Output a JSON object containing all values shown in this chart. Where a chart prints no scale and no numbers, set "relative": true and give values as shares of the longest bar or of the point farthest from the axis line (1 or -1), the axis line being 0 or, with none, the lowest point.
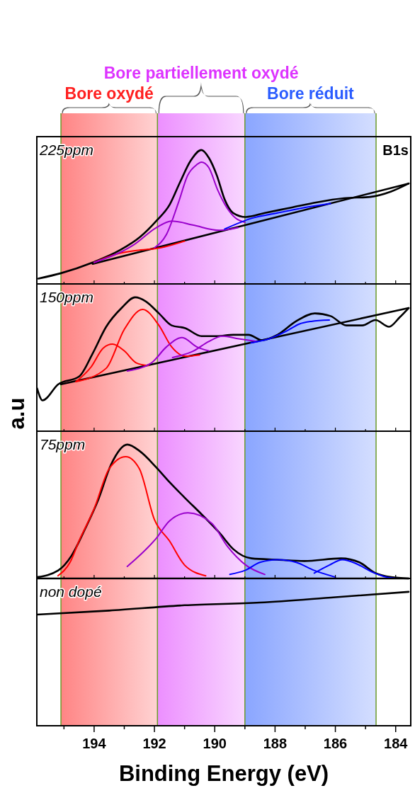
{
  "chart_data": [
    {
      "type": "line",
      "relative": true,
      "xlim": [
        195.9,
        183.5
      ],
      "tick_labels": false,
      "annotations": [
        "225ppm",
        "B1s"
      ],
      "xticks": [
        {
          "value": 195,
          "label": null
        },
        194,
        {
          "value": 193,
          "label": null
        },
        192,
        {
          "value": 191,
          "label": null
        },
        190,
        {
          "value": 189,
          "label": null
        },
        188,
        {
          "value": 187,
          "label": null
        },
        186,
        {
          "value": 185,
          "label": null
        },
        184
      ],
      "ref_lines": [
        {
          "axis": "x",
          "value": 195.1,
          "color": "#6b9a2a"
        },
        {
          "axis": "x",
          "value": 191.9,
          "color": "#6b9a2a"
        },
        {
          "axis": "x",
          "value": 189.0,
          "color": "#6b9a2a"
        },
        {
          "axis": "x",
          "value": 184.65,
          "color": "#6b9a2a"
        }
      ],
      "bands": [
        {
          "axis": "x",
          "from": 195.1,
          "to": 191.9,
          "label": "Bore oxydé",
          "color": "#ff2020"
        },
        {
          "axis": "x",
          "from": 191.9,
          "to": 189.0,
          "label": "Bore partiellement oxydé",
          "color": "#dd33ff"
        },
        {
          "axis": "x",
          "from": 189.0,
          "to": 184.65,
          "label": "Bore réduit",
          "color": "#2a5cff"
        }
      ],
      "series": [
        {
          "color": "#000000",
          "x": [
            195.85,
            195.1,
            194.05,
            193.16,
            192.48,
            191.94,
            191.5,
            191.15,
            190.8,
            190.44,
            190.19,
            189.93,
            189.67,
            189.39,
            188.97,
            188.34,
            187.47,
            186.61,
            185.72,
            184.85,
            184.15,
            183.57
          ],
          "values": [
            0.04,
            0.08,
            0.16,
            0.25,
            0.35,
            0.47,
            0.59,
            0.76,
            0.92,
            1,
            0.94,
            0.81,
            0.63,
            0.53,
            0.5,
            0.53,
            0.57,
            0.61,
            0.64,
            0.65,
            0.69,
            0.75
          ]
        },
        {
          "color": "#000000",
          "x": [
            194.05,
            183.57
          ],
          "values": [
            0.15,
            0.75
          ]
        },
        {
          "color": "#ff0000",
          "x": [
            194.0,
            193.3,
            192.6,
            191.8,
            191.0
          ],
          "values": [
            0.16,
            0.22,
            0.25,
            0.27,
            0.32
          ]
        },
        {
          "color": "#9900cc",
          "x": [
            194.0,
            192.7,
            191.94,
            191.43,
            190.73,
            189.84,
            189.23
          ],
          "values": [
            0.16,
            0.29,
            0.42,
            0.47,
            0.44,
            0.4,
            0.42
          ]
        },
        {
          "color": "#9900cc",
          "x": [
            192.0,
            191.6,
            191.2,
            190.9,
            190.6,
            190.44,
            190.2,
            189.9,
            189.6,
            189.3,
            189.0
          ],
          "values": [
            0.27,
            0.37,
            0.61,
            0.81,
            0.89,
            0.91,
            0.87,
            0.7,
            0.57,
            0.49,
            0.46
          ]
        },
        {
          "color": "#0000ff",
          "x": [
            189.67,
            188.78,
            187.92,
            187.03,
            186.16
          ],
          "values": [
            0.41,
            0.49,
            0.53,
            0.57,
            0.6
          ]
        }
      ]
    },
    {
      "type": "line",
      "relative": true,
      "xlim": [
        195.9,
        183.5
      ],
      "tick_labels": false,
      "ylabel": "a.u",
      "annotations": [
        "150ppm"
      ],
      "xticks": [
        {
          "value": 195,
          "label": null
        },
        194,
        {
          "value": 193,
          "label": null
        },
        192,
        {
          "value": 191,
          "label": null
        },
        190,
        {
          "value": 189,
          "label": null
        },
        188,
        {
          "value": 187,
          "label": null
        },
        186,
        {
          "value": 185,
          "label": null
        },
        184
      ],
      "ref_lines": [
        {
          "axis": "x",
          "value": 195.1,
          "color": "#6b9a2a"
        },
        {
          "axis": "x",
          "value": 191.9,
          "color": "#6b9a2a"
        },
        {
          "axis": "x",
          "value": 189.0,
          "color": "#6b9a2a"
        },
        {
          "axis": "x",
          "value": 184.65,
          "color": "#6b9a2a"
        }
      ],
      "bands": [
        {
          "axis": "x",
          "from": 195.1,
          "to": 191.9,
          "color": "#ff2020"
        },
        {
          "axis": "x",
          "from": 191.9,
          "to": 189.0,
          "color": "#dd33ff"
        },
        {
          "axis": "x",
          "from": 189.0,
          "to": 184.65,
          "color": "#2a5cff"
        }
      ],
      "series": [
        {
          "color": "#000000",
          "x": [
            195.89,
            195.71,
            195.19,
            194.49,
            194.05,
            193.6,
            193.09,
            192.64,
            192.29,
            191.85,
            191.43,
            190.98,
            190.44,
            189.93,
            189.39,
            188.88,
            188.43,
            187.92,
            187.31,
            186.68,
            186.16,
            185.63,
            185.11,
            184.67,
            184.22,
            183.87,
            183.57
          ],
          "values": [
            0.32,
            0.23,
            0.35,
            0.41,
            0.58,
            0.78,
            0.92,
            1,
            0.97,
            0.88,
            0.79,
            0.77,
            0.71,
            0.71,
            0.72,
            0.72,
            0.68,
            0.72,
            0.82,
            0.88,
            0.86,
            0.79,
            0.79,
            0.83,
            0.78,
            0.85,
            0.92
          ]
        },
        {
          "color": "#000000",
          "x": [
            195.1,
            183.57
          ],
          "values": [
            0.35,
            0.92
          ]
        },
        {
          "color": "#ff0000",
          "x": [
            194.6,
            194.1,
            193.7,
            193.39,
            193.0,
            192.6,
            192.2
          ],
          "values": [
            0.37,
            0.48,
            0.62,
            0.65,
            0.6,
            0.51,
            0.49
          ]
        },
        {
          "color": "#ff0000",
          "x": [
            194.6,
            193.6,
            193.0,
            192.39,
            191.85,
            191.43,
            190.98,
            190.5
          ],
          "values": [
            0.37,
            0.47,
            0.76,
            0.91,
            0.79,
            0.63,
            0.56,
            0.57
          ]
        },
        {
          "color": "#9900cc",
          "x": [
            192.9,
            192.1,
            191.6,
            191.08,
            190.6,
            190.2
          ],
          "values": [
            0.45,
            0.51,
            0.63,
            0.7,
            0.63,
            0.6
          ]
        },
        {
          "color": "#9900cc",
          "x": [
            191.4,
            190.7,
            190.2,
            189.74,
            189.2,
            188.6
          ],
          "values": [
            0.55,
            0.6,
            0.67,
            0.71,
            0.69,
            0.67
          ]
        },
        {
          "color": "#0000ff",
          "x": [
            188.8,
            188.2,
            187.6,
            187.2,
            186.8,
            186.2
          ],
          "values": [
            0.66,
            0.69,
            0.75,
            0.8,
            0.82,
            0.83
          ]
        }
      ]
    },
    {
      "type": "line",
      "relative": true,
      "xlim": [
        195.9,
        183.5
      ],
      "tick_labels": false,
      "annotations": [
        "75ppm"
      ],
      "xticks": [
        {
          "value": 195,
          "label": null
        },
        194,
        {
          "value": 193,
          "label": null
        },
        192,
        {
          "value": 191,
          "label": null
        },
        190,
        {
          "value": 189,
          "label": null
        },
        188,
        {
          "value": 187,
          "label": null
        },
        186,
        {
          "value": 185,
          "label": null
        },
        184
      ],
      "ref_lines": [
        {
          "axis": "x",
          "value": 195.1,
          "color": "#6b9a2a"
        },
        {
          "axis": "x",
          "value": 191.9,
          "color": "#6b9a2a"
        },
        {
          "axis": "x",
          "value": 189.0,
          "color": "#6b9a2a"
        },
        {
          "axis": "x",
          "value": 184.65,
          "color": "#6b9a2a"
        }
      ],
      "bands": [
        {
          "axis": "x",
          "from": 195.1,
          "to": 191.9,
          "color": "#ff2020"
        },
        {
          "axis": "x",
          "from": 191.9,
          "to": 189.0,
          "color": "#dd33ff"
        },
        {
          "axis": "x",
          "from": 189.0,
          "to": 184.65,
          "color": "#2a5cff"
        }
      ],
      "series": [
        {
          "color": "#000000",
          "x": [
            195.89,
            195.19,
            194.75,
            194.3,
            193.86,
            193.44,
            192.9,
            192.48,
            191.94,
            191.5,
            190.98,
            190.44,
            189.84,
            189.39,
            188.78,
            187.92,
            187.03,
            185.81,
            185.2,
            184.67,
            184.15,
            183.57
          ],
          "values": [
            0.01,
            0.06,
            0.17,
            0.37,
            0.59,
            0.85,
            1,
            0.95,
            0.83,
            0.72,
            0.6,
            0.48,
            0.34,
            0.22,
            0.15,
            0.14,
            0.13,
            0.15,
            0.12,
            0.04,
            0.01,
            0
          ]
        },
        {
          "color": "#000000",
          "x": [
            195.89,
            183.57
          ],
          "values": [
            0,
            0
          ]
        },
        {
          "color": "#ff0000",
          "x": [
            195.2,
            194.8,
            194.5,
            194.0,
            193.5,
            192.95,
            192.5,
            192.0,
            191.5,
            191.0,
            190.3
          ],
          "values": [
            0.02,
            0.12,
            0.28,
            0.52,
            0.82,
            0.91,
            0.82,
            0.44,
            0.28,
            0.1,
            0.02
          ]
        },
        {
          "color": "#9900cc",
          "x": [
            192.9,
            191.94,
            191.5,
            190.89,
            190.09,
            189.58,
            188.97,
            188.34
          ],
          "values": [
            0.09,
            0.3,
            0.43,
            0.49,
            0.41,
            0.24,
            0.1,
            0.03
          ]
        },
        {
          "color": "#0000ff",
          "x": [
            189.5,
            189.0,
            188.5,
            187.92,
            187.3,
            186.7,
            186.0
          ],
          "values": [
            0.03,
            0.06,
            0.12,
            0.14,
            0.12,
            0.06,
            0.01
          ]
        },
        {
          "color": "#0000ff",
          "x": [
            186.7,
            186.2,
            185.77,
            185.3,
            184.8,
            184.3,
            183.9
          ],
          "values": [
            0.04,
            0.1,
            0.14,
            0.11,
            0.05,
            0.01,
            0
          ]
        }
      ]
    },
    {
      "type": "line",
      "relative": true,
      "xlim": [
        195.9,
        183.5
      ],
      "xlabel": "Binding Energy  (eV)",
      "annotations": [
        "non dopé"
      ],
      "ref_lines": [
        {
          "axis": "x",
          "value": 195.1,
          "color": "#6b9a2a"
        },
        {
          "axis": "x",
          "value": 191.9,
          "color": "#6b9a2a"
        },
        {
          "axis": "x",
          "value": 189.0,
          "color": "#6b9a2a"
        },
        {
          "axis": "x",
          "value": 184.65,
          "color": "#6b9a2a"
        }
      ],
      "xticks": [
        {
          "value": 195,
          "label": null
        },
        194,
        {
          "value": 193,
          "label": null
        },
        192,
        {
          "value": 191,
          "label": null
        },
        190,
        {
          "value": 189,
          "label": null
        },
        188,
        {
          "value": 187,
          "label": null
        },
        186,
        {
          "value": 185,
          "label": null
        },
        184
      ],
      "bands": [
        {
          "axis": "x",
          "from": 195.1,
          "to": 191.9,
          "color": "#ff2020"
        },
        {
          "axis": "x",
          "from": 191.9,
          "to": 189.0,
          "color": "#dd33ff"
        },
        {
          "axis": "x",
          "from": 189.0,
          "to": 184.65,
          "color": "#2a5cff"
        }
      ],
      "series": [
        {
          "color": "#000000",
          "x": [
            195.89,
            193.5,
            191.0,
            188.5,
            186.0,
            183.57
          ],
          "values": [
            0.83,
            0.86,
            0.9,
            0.92,
            0.96,
            1
          ]
        }
      ]
    }
  ]
}
